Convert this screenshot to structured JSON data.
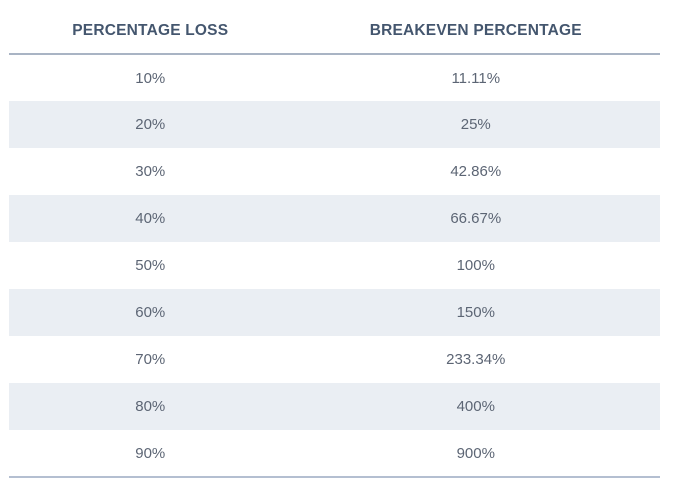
{
  "table": {
    "headers": [
      "PERCENTAGE LOSS",
      "BREAKEVEN PERCENTAGE"
    ],
    "rows": [
      [
        "10%",
        "11.11%"
      ],
      [
        "20%",
        "25%"
      ],
      [
        "30%",
        "42.86%"
      ],
      [
        "40%",
        "66.67%"
      ],
      [
        "50%",
        "100%"
      ],
      [
        "60%",
        "150%"
      ],
      [
        "70%",
        "233.34%"
      ],
      [
        "80%",
        "400%"
      ],
      [
        "90%",
        "900%"
      ]
    ]
  },
  "chart_data": {
    "type": "table",
    "title": "",
    "columns": [
      "PERCENTAGE LOSS",
      "BREAKEVEN PERCENTAGE"
    ],
    "rows": [
      {
        "percentage_loss": "10%",
        "breakeven_percentage": "11.11%"
      },
      {
        "percentage_loss": "20%",
        "breakeven_percentage": "25%"
      },
      {
        "percentage_loss": "30%",
        "breakeven_percentage": "42.86%"
      },
      {
        "percentage_loss": "40%",
        "breakeven_percentage": "66.67%"
      },
      {
        "percentage_loss": "50%",
        "breakeven_percentage": "100%"
      },
      {
        "percentage_loss": "60%",
        "breakeven_percentage": "150%"
      },
      {
        "percentage_loss": "70%",
        "breakeven_percentage": "233.34%"
      },
      {
        "percentage_loss": "80%",
        "breakeven_percentage": "400%"
      },
      {
        "percentage_loss": "90%",
        "breakeven_percentage": "900%"
      }
    ],
    "layout_hints": {
      "striped_rows": "even rows shaded",
      "text_alignment": "center",
      "grid": "horizontal rules above first row and below last row only"
    }
  },
  "colors": {
    "header_text": "#44566e",
    "cell_text": "#5c6574",
    "row_stripe": "#eaeef3",
    "header_rule": "#a9b4c4",
    "bottom_rule": "#b4bfd1",
    "background": "#ffffff"
  }
}
